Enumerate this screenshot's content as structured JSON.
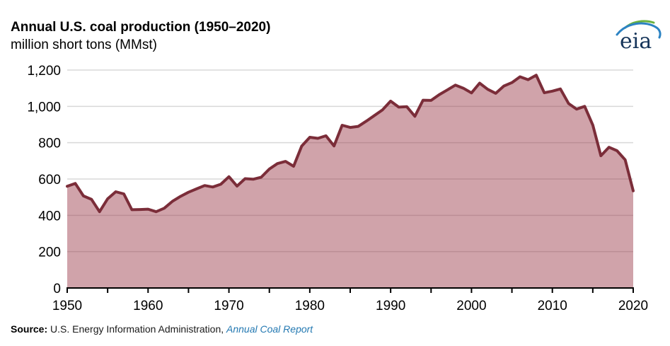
{
  "header": {
    "title": "Annual U.S. coal production (1950–2020)",
    "subtitle": "million short tons (MMst)"
  },
  "logo": {
    "text": "eia"
  },
  "footer": {
    "source_label": "Source:",
    "source_text": " U.S. Energy Information Administration, ",
    "link_text": "Annual Coal Report"
  },
  "colors": {
    "line": "#7b2d39",
    "fill": "#963242",
    "fill_opacity": 0.45,
    "grid": "#d9d9d9",
    "axis": "#000000",
    "text": "#000000",
    "link": "#2479b2",
    "logo_text": "#16355a",
    "logo_arc_green": "#6ab23f",
    "logo_arc_blue": "#2c83c3"
  },
  "chart_data": {
    "type": "area",
    "title": "Annual U.S. coal production (1950–2020)",
    "ylabel": "million short tons (MMst)",
    "xlabel": "",
    "grid": true,
    "legend": false,
    "xlim": [
      1950,
      2020
    ],
    "ylim": [
      0,
      1200
    ],
    "yticks": [
      0,
      200,
      400,
      600,
      800,
      1000,
      1200
    ],
    "ytick_labels": [
      "0",
      "200",
      "400",
      "600",
      "800",
      "1,000",
      "1,200"
    ],
    "xticks_labeled": [
      1950,
      1960,
      1970,
      1980,
      1990,
      2000,
      2010,
      2020
    ],
    "xtick_minor_step": 5,
    "x": [
      1950,
      1951,
      1952,
      1953,
      1954,
      1955,
      1956,
      1957,
      1958,
      1959,
      1960,
      1961,
      1962,
      1963,
      1964,
      1965,
      1966,
      1967,
      1968,
      1969,
      1970,
      1971,
      1972,
      1973,
      1974,
      1975,
      1976,
      1977,
      1978,
      1979,
      1980,
      1981,
      1982,
      1983,
      1984,
      1985,
      1986,
      1987,
      1988,
      1989,
      1990,
      1991,
      1992,
      1993,
      1994,
      1995,
      1996,
      1997,
      1998,
      1999,
      2000,
      2001,
      2002,
      2003,
      2004,
      2005,
      2006,
      2007,
      2008,
      2009,
      2010,
      2011,
      2012,
      2013,
      2014,
      2015,
      2016,
      2017,
      2018,
      2019,
      2020
    ],
    "values": [
      560,
      576,
      507,
      488,
      420,
      491,
      530,
      518,
      431,
      432,
      434,
      420,
      439,
      477,
      504,
      527,
      546,
      564,
      556,
      571,
      613,
      561,
      602,
      599,
      610,
      655,
      685,
      697,
      670,
      781,
      830,
      824,
      838,
      782,
      896,
      884,
      890,
      919,
      950,
      981,
      1029,
      996,
      998,
      945,
      1034,
      1033,
      1064,
      1090,
      1117,
      1100,
      1074,
      1128,
      1094,
      1072,
      1112,
      1131,
      1163,
      1147,
      1172,
      1075,
      1084,
      1096,
      1016,
      985,
      1000,
      897,
      728,
      775,
      756,
      706,
      535
    ]
  }
}
